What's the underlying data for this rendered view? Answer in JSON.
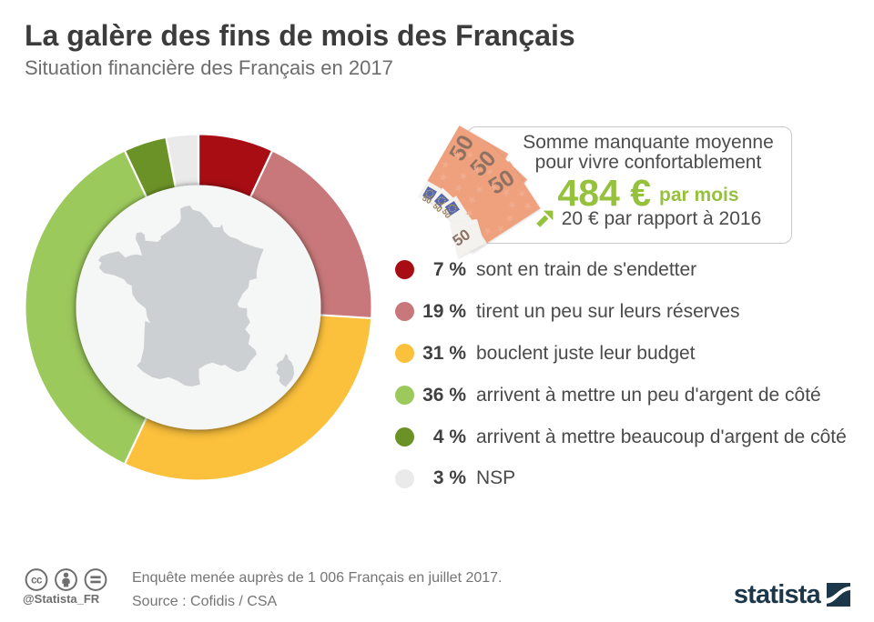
{
  "header": {
    "title": "La galère des fins de mois des Français",
    "subtitle": "Situation financière des Français en 2017"
  },
  "chart_data": {
    "type": "pie",
    "donut": true,
    "title": "Situation financière des Français en 2017",
    "unit": "%",
    "start_angle_deg": 0,
    "direction": "clockwise",
    "legend_position": "right",
    "center_image": "france-map",
    "segments": [
      {
        "label": "sont en train de s'endetter",
        "value": 7,
        "color": "#a70d12"
      },
      {
        "label": "tirent un peu sur leurs réserves",
        "value": 19,
        "color": "#c8787a"
      },
      {
        "label": "bouclent juste leur budget",
        "value": 31,
        "color": "#fcc13c"
      },
      {
        "label": "arrivent à mettre un peu d'argent de côté",
        "value": 36,
        "color": "#9cc95c"
      },
      {
        "label": "arrivent à mettre beaucoup d'argent de côté",
        "value": 4,
        "color": "#6b9226"
      },
      {
        "label": "NSP",
        "value": 3,
        "color": "#eaeaea"
      }
    ]
  },
  "callout": {
    "line1": "Somme manquante moyenne",
    "line2": "pour vivre confortablement",
    "amount": "484 €",
    "amount_suffix": "par mois",
    "amount_color": "#95c13d",
    "delta_text": "20 € par rapport à 2016",
    "banknote_denomination": "50"
  },
  "footer": {
    "handle": "@Statista_FR",
    "note_line1": "Enquête menée auprès de 1 006 Français en juillet 2017.",
    "note_line2": "Source : Cofidis / CSA",
    "brand": "statista",
    "brand_color": "#1d374a",
    "license_icons": [
      "cc-icon",
      "attribution-icon",
      "no-derivatives-icon"
    ]
  }
}
